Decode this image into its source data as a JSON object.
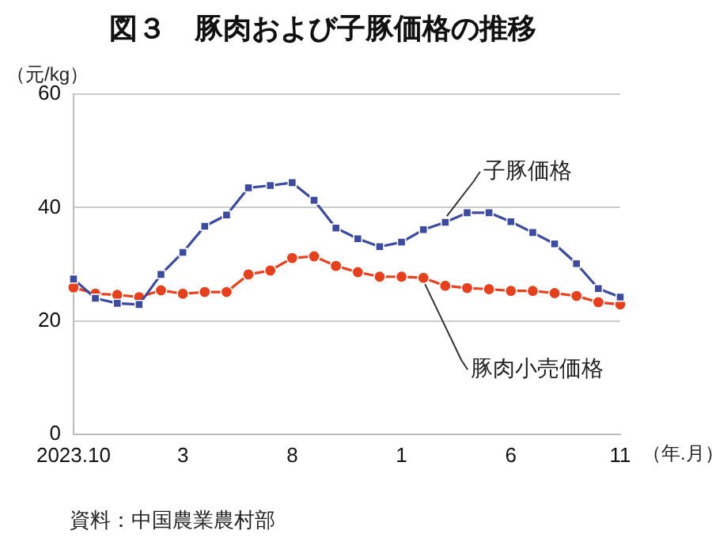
{
  "chart_data": {
    "type": "line",
    "title": "図３　豚肉および子豚価格の推移",
    "ylabel": "（元/kg）",
    "xlabel": "（年.月）",
    "categories": [
      "2023.10",
      null,
      null,
      null,
      null,
      "3",
      null,
      null,
      null,
      null,
      "8",
      null,
      null,
      null,
      null,
      "1",
      null,
      null,
      null,
      null,
      "6",
      null,
      null,
      null,
      null,
      "11"
    ],
    "series": [
      {
        "name": "子豚価格",
        "color": "#3c4aa0",
        "marker": "square",
        "values": [
          27.4,
          24.0,
          23.1,
          22.9,
          28.2,
          32.1,
          36.7,
          38.7,
          43.5,
          43.9,
          44.4,
          41.3,
          36.4,
          34.5,
          33.1,
          33.9,
          36.1,
          37.4,
          39.1,
          39.1,
          37.5,
          35.6,
          33.6,
          30.1,
          25.7,
          24.2
        ]
      },
      {
        "name": "豚肉小売価格",
        "color": "#e8401c",
        "marker": "circle",
        "values": [
          25.9,
          24.8,
          24.6,
          24.2,
          25.4,
          24.8,
          25.1,
          25.1,
          28.2,
          28.9,
          31.1,
          31.4,
          29.7,
          28.6,
          27.8,
          27.8,
          27.6,
          26.2,
          25.8,
          25.6,
          25.3,
          25.3,
          24.9,
          24.4,
          23.3,
          22.9
        ]
      }
    ],
    "ylim": [
      0,
      60
    ],
    "yticks": [
      0,
      20,
      40,
      60
    ],
    "grid": "y",
    "legend": false,
    "annotations": [
      "資料：中国農業農村部"
    ]
  }
}
